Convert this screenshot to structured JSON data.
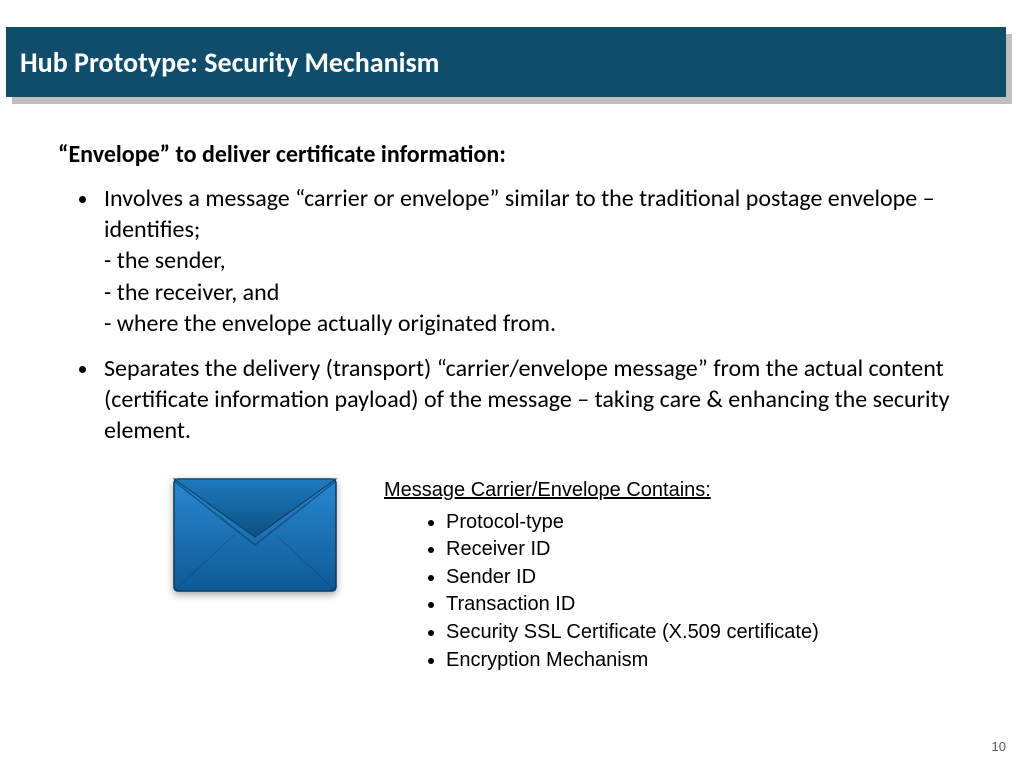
{
  "title": "Hub Prototype: Security Mechanism",
  "colors": {
    "title_bg": "#0f4d6b",
    "title_shadow": "#bfbfbf",
    "title_text": "#ffffff",
    "body_text": "#000000",
    "envelope_fill": "#1a70b8",
    "envelope_dark": "#0d4f82",
    "envelope_light": "#2a88d0",
    "envelope_stroke": "#0a3a5e",
    "page_num_color": "#595959"
  },
  "heading": "“Envelope” to deliver certificate information:",
  "bullets": [
    "Involves a message “carrier or envelope” similar to the traditional postage envelope – identifies;\n- the sender,\n-  the receiver, and\n- where the envelope actually originated from.",
    "Separates the delivery (transport) “carrier/envelope message” from the actual  content (certificate information payload) of the message – taking care & enhancing  the security element."
  ],
  "carrier": {
    "heading": "Message Carrier/Envelope Contains:",
    "items": [
      "Protocol-type",
      "Receiver ID",
      "Sender ID",
      "Transaction ID",
      "Security SSL Certificate (X.509 certificate)",
      "Encryption Mechanism"
    ]
  },
  "page_number": "10"
}
